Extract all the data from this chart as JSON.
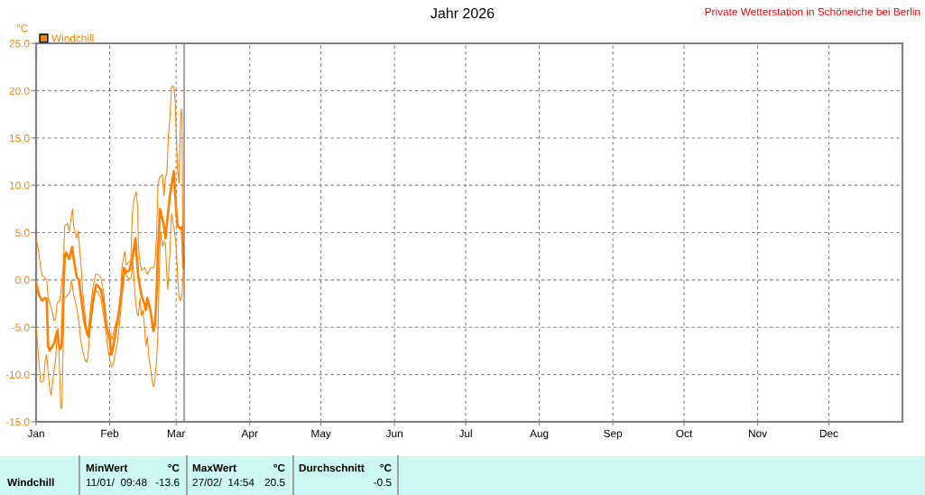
{
  "chart_data": {
    "type": "line",
    "title": "Jahr 2026",
    "ylabel": "°C",
    "annotations": [
      "Private Wetterstation in Schöneiche bei Berlin",
      "Windchill",
      "MinWert",
      "°C",
      "11/01/  09:48",
      "-13.6",
      "MaxWert",
      "°C",
      "27/02/  14:54",
      "20.5",
      "Durchschnitt",
      "°C",
      "-0.5"
    ],
    "series": [
      {
        "name": "Windchill",
        "color": "#ff8000",
        "x": [
          "2026-01-01T00:00",
          "2026-01-01T15:00",
          "2026-01-02T06:00",
          "2026-01-03T13:00",
          "2026-01-04T19:00",
          "2026-01-05T11:00",
          "2026-01-06T02:00",
          "2026-01-06T17:00",
          "2026-01-08T14:00",
          "2026-01-09T21:00",
          "2026-01-10T12:00",
          "2026-01-11T03:00",
          "2026-01-11T18:00",
          "2026-01-12T10:00",
          "2026-01-13T01:00",
          "2026-01-13T16:00",
          "2026-01-14T23:00",
          "2026-01-16T05:00",
          "2026-01-16T20:00",
          "2026-01-18T03:00",
          "2026-01-19T00:00",
          "2026-01-20T00:00",
          "2026-01-21T07:00",
          "2026-01-22T13:00",
          "2026-01-23T04:00",
          "2026-01-23T19:00",
          "2026-01-25T02:00",
          "2026-01-26T08:00",
          "2026-01-27T00:00",
          "2026-01-28T06:00",
          "2026-01-29T12:00",
          "2026-01-30T19:00",
          "2026-02-01T01:00",
          "2026-02-01T17:00",
          "2026-02-02T08:00",
          "2026-02-03T14:00",
          "2026-02-04T20:00",
          "2026-02-06T03:00",
          "2026-02-07T00:00",
          "2026-02-08T00:00",
          "2026-02-09T07:00",
          "2026-02-10T13:00",
          "2026-02-11T20:00",
          "2026-02-12T11:00",
          "2026-02-13T02:00",
          "2026-02-14T09:00",
          "2026-02-15T15:00",
          "2026-02-16T06:00",
          "2026-02-16T21:00",
          "2026-02-18T04:00",
          "2026-02-19T10:00",
          "2026-02-20T01:00",
          "2026-02-20T17:00",
          "2026-02-21T08:00",
          "2026-02-22T05:00",
          "2026-02-23T21:00",
          "2026-02-24T12:00",
          "2026-02-25T03:00",
          "2026-02-26T10:00",
          "2026-02-28T01:00",
          "2026-02-28T23:00",
          "2026-03-01T14:00",
          "2026-03-02T20:00",
          "2026-03-03T11:00",
          "2026-03-04T02:00"
        ],
        "values": [
          -0.3,
          -1.0,
          -1.6,
          -2.2,
          -1.9,
          -2.0,
          -7.0,
          -7.5,
          -6.7,
          -5.4,
          -6.7,
          -7.3,
          -7.0,
          -1.9,
          2.5,
          2.9,
          2.2,
          3.5,
          2.2,
          0.3,
          0.0,
          -1.9,
          -4.4,
          -5.7,
          -6.0,
          -4.4,
          -1.9,
          -0.5,
          -0.6,
          -1.0,
          -2.5,
          -5.1,
          -6.3,
          -7.9,
          -7.3,
          -5.4,
          -3.5,
          -1.0,
          1.3,
          0.8,
          1.0,
          2.2,
          4.4,
          2.2,
          0.3,
          -1.6,
          -2.5,
          -3.2,
          -1.9,
          -3.2,
          -5.4,
          -4.8,
          -1.9,
          2.9,
          7.5,
          5.7,
          4.4,
          6.0,
          9.0,
          11.5,
          7.6,
          5.7,
          5.4,
          5.6,
          1.3
        ]
      },
      {
        "color": "#ff8000",
        "x": [
          "2026-01-01T00:00",
          "2026-01-02T00:00",
          "2026-01-02T22:00",
          "2026-01-03T13:00",
          "2026-01-04T19:00",
          "2026-01-05T11:00",
          "2026-01-06T02:00",
          "2026-01-07T08:00",
          "2026-01-08T14:00",
          "2026-01-09T06:00",
          "2026-01-09T21:00",
          "2026-01-11T03:00",
          "2026-01-12T10:00",
          "2026-01-13T01:00",
          "2026-01-14T07:00",
          "2026-01-14T23:00",
          "2026-01-15T20:00",
          "2026-01-16T08:00",
          "2026-01-16T20:00",
          "2026-01-18T03:00",
          "2026-01-18T18:00",
          "2026-01-19T09:00",
          "2026-01-20T00:00",
          "2026-01-20T16:00",
          "2026-01-21T07:00",
          "2026-01-21T22:00",
          "2026-01-22T13:00",
          "2026-01-23T04:00",
          "2026-01-23T19:00",
          "2026-01-25T02:00",
          "2026-01-26T02:00",
          "2026-01-27T00:00",
          "2026-01-28T06:00",
          "2026-01-29T12:00",
          "2026-01-30T10:00",
          "2026-01-31T04:00",
          "2026-02-01T01:00",
          "2026-02-01T23:00",
          "2026-02-02T23:00",
          "2026-02-04T05:00",
          "2026-02-05T12:00",
          "2026-02-06T03:00",
          "2026-02-06T18:00",
          "2026-02-07T09:00",
          "2026-02-08T00:00",
          "2026-02-09T07:00",
          "2026-02-09T22:00",
          "2026-02-10T13:00",
          "2026-02-11T05:00",
          "2026-02-12T05:00",
          "2026-02-12T20:00",
          "2026-02-13T02:00",
          "2026-02-13T18:00",
          "2026-02-14T09:00",
          "2026-02-15T15:00",
          "2026-02-16T21:00",
          "2026-02-18T04:00",
          "2026-02-19T10:00",
          "2026-02-20T01:00",
          "2026-02-20T17:00",
          "2026-02-21T08:00",
          "2026-02-21T23:00",
          "2026-02-23T06:00",
          "2026-02-23T21:00",
          "2026-02-24T12:00",
          "2026-02-25T03:00",
          "2026-02-25T18:00",
          "2026-02-26T10:00",
          "2026-02-27T01:00",
          "2026-02-27T15:00",
          "2026-02-28T01:00",
          "2026-02-28T13:00",
          "2026-03-01T01:00",
          "2026-03-01T14:00",
          "2026-03-02T05:00",
          "2026-03-02T20:00",
          "2026-03-03T05:00",
          "2026-03-03T11:00",
          "2026-03-03T20:00",
          "2026-03-04T09:00"
        ],
        "values": [
          4.4,
          3.2,
          1.3,
          0.5,
          0.2,
          0.0,
          -1.9,
          -2.9,
          -4.3,
          -4.1,
          -2.5,
          -2.1,
          1.3,
          5.7,
          6.0,
          5.1,
          6.7,
          7.5,
          5.7,
          4.4,
          5.2,
          3.2,
          1.3,
          -1.3,
          -2.9,
          -4.4,
          -5.7,
          -5.1,
          -3.2,
          -0.6,
          0.6,
          0.6,
          0.3,
          -1.3,
          -4.1,
          -5.7,
          -5.4,
          -6.3,
          -5.1,
          -4.1,
          -1.9,
          1.3,
          2.2,
          3.0,
          1.6,
          1.9,
          2.2,
          7.0,
          8.5,
          9.3,
          7.6,
          3.5,
          1.9,
          1.0,
          1.3,
          0.6,
          1.3,
          1.3,
          1.6,
          4.4,
          9.9,
          10.8,
          11.1,
          8.9,
          10.8,
          11.4,
          15.3,
          17.2,
          20.4,
          20.5,
          20.4,
          19.1,
          15.6,
          11.8,
          10.2,
          16.9,
          18.1,
          17.2,
          4.4,
          2.0
        ]
      },
      {
        "color": "#ff8000",
        "x": [
          "2026-01-01T00:00",
          "2026-01-01T15:00",
          "2026-01-02T06:00",
          "2026-01-02T22:00",
          "2026-01-03T13:00",
          "2026-01-04T04:00",
          "2026-01-04T19:00",
          "2026-01-05T11:00",
          "2026-01-06T02:00",
          "2026-01-06T17:00",
          "2026-01-07T08:00",
          "2026-01-07T23:00",
          "2026-01-08T14:00",
          "2026-01-09T06:00",
          "2026-01-09T21:00",
          "2026-01-10T06:00",
          "2026-01-10T18:00",
          "2026-01-11T10:00",
          "2026-01-11T22:00",
          "2026-01-12T10:00",
          "2026-01-12T19:00",
          "2026-01-13T10:00",
          "2026-01-14T07:00",
          "2026-01-15T05:00",
          "2026-01-15T23:00",
          "2026-01-16T20:00",
          "2026-01-18T03:00",
          "2026-01-19T00:00",
          "2026-01-19T18:00",
          "2026-01-20T16:00",
          "2026-01-21T13:00",
          "2026-01-22T07:00",
          "2026-01-22T22:00",
          "2026-01-23T13:00",
          "2026-01-24T11:00",
          "2026-01-25T08:00",
          "2026-01-26T02:00",
          "2026-01-27T00:00",
          "2026-01-28T06:00",
          "2026-01-29T12:00",
          "2026-01-30T19:00",
          "2026-01-31T16:00",
          "2026-02-01T17:00",
          "2026-02-02T08:00",
          "2026-02-02T23:00",
          "2026-02-04T05:00",
          "2026-02-05T06:00",
          "2026-02-06T03:00",
          "2026-02-06T18:00",
          "2026-02-07T09:00",
          "2026-02-08T00:00",
          "2026-02-09T07:00",
          "2026-02-10T04:00",
          "2026-02-10T19:00",
          "2026-02-11T20:00",
          "2026-02-12T11:00",
          "2026-02-13T02:00",
          "2026-02-13T18:00",
          "2026-02-14T09:00",
          "2026-02-15T00:00",
          "2026-02-15T15:00",
          "2026-02-16T06:00",
          "2026-02-16T21:00",
          "2026-02-17T13:00",
          "2026-02-18T04:00",
          "2026-02-18T19:00",
          "2026-02-19T10:00",
          "2026-02-20T01:00",
          "2026-02-20T17:00",
          "2026-02-21T08:00",
          "2026-02-21T17:00",
          "2026-02-22T05:00",
          "2026-02-22T14:00",
          "2026-02-23T06:00",
          "2026-02-23T21:00",
          "2026-02-24T12:00",
          "2026-02-25T03:00",
          "2026-02-25T12:00",
          "2026-02-26T10:00",
          "2026-02-27T01:00",
          "2026-02-28T07:00",
          "2026-02-28T23:00",
          "2026-03-01T14:00",
          "2026-03-02T05:00",
          "2026-03-02T20:00",
          "2026-03-03T11:00",
          "2026-03-04T02:00"
        ],
        "values": [
          -5.1,
          -6.7,
          -8.9,
          -10.8,
          -10.8,
          -10.6,
          -8.6,
          -7.9,
          -9.8,
          -11.4,
          -12.2,
          -10.8,
          -9.5,
          -8.3,
          -5.7,
          -5.1,
          -8.3,
          -13.6,
          -13.5,
          -6.7,
          -1.9,
          -1.9,
          -1.6,
          -1.3,
          0.0,
          -1.6,
          -2.9,
          -4.4,
          -6.3,
          -7.6,
          -8.4,
          -8.7,
          -8.1,
          -5.7,
          -3.8,
          -2.2,
          -1.1,
          -1.3,
          -1.9,
          -3.8,
          -6.3,
          -7.9,
          -9.2,
          -9.0,
          -8.3,
          -6.7,
          -4.4,
          -1.9,
          -0.6,
          0.8,
          0.5,
          0.0,
          0.3,
          1.9,
          -1.9,
          -3.5,
          -3.8,
          -1.9,
          -3.8,
          -3.2,
          -4.8,
          -7.0,
          -6.0,
          -8.3,
          -9.2,
          -10.5,
          -11.3,
          -10.6,
          -8.6,
          -5.7,
          -1.3,
          3.5,
          5.1,
          3.5,
          4.1,
          3.8,
          0.3,
          -1.0,
          2.9,
          7.0,
          5.1,
          3.8,
          0.6,
          -1.9,
          -2.2,
          -1.6,
          1.3
        ]
      }
    ],
    "xlim": [
      "2026-01-01",
      "2027-01-01"
    ],
    "xticks": [
      {
        "value": "2026-01-01",
        "label": "Jan"
      },
      {
        "value": "2026-02-01",
        "label": "Feb"
      },
      {
        "value": "2026-03-01",
        "label": "Mar"
      },
      {
        "value": "2026-04-01",
        "label": "Apr"
      },
      {
        "value": "2026-05-01",
        "label": "May"
      },
      {
        "value": "2026-06-01",
        "label": "Jun"
      },
      {
        "value": "2026-07-01",
        "label": "Jul"
      },
      {
        "value": "2026-08-01",
        "label": "Aug"
      },
      {
        "value": "2026-09-01",
        "label": "Sep"
      },
      {
        "value": "2026-10-01",
        "label": "Oct"
      },
      {
        "value": "2026-11-01",
        "label": "Nov"
      },
      {
        "value": "2026-12-01",
        "label": "Dec"
      }
    ],
    "ylim": [
      -15,
      25
    ],
    "yticks": [
      {
        "value": -15,
        "label": "-15.0"
      },
      {
        "value": -10,
        "label": "-10.0"
      },
      {
        "value": -5,
        "label": "-5.0"
      },
      {
        "value": 0,
        "label": "0.0"
      },
      {
        "value": 5,
        "label": "5.0"
      },
      {
        "value": 10,
        "label": "10.0"
      },
      {
        "value": 15,
        "label": "15.0"
      },
      {
        "value": 20,
        "label": "20.0"
      },
      {
        "value": 25,
        "label": "25.0"
      }
    ],
    "grid": true,
    "legend": "top left",
    "line_style": "solid",
    "marker": "none",
    "ref_lines": [
      {
        "axis": "x",
        "value": "2026-03-04T09:00",
        "color": "#707070"
      }
    ]
  }
}
